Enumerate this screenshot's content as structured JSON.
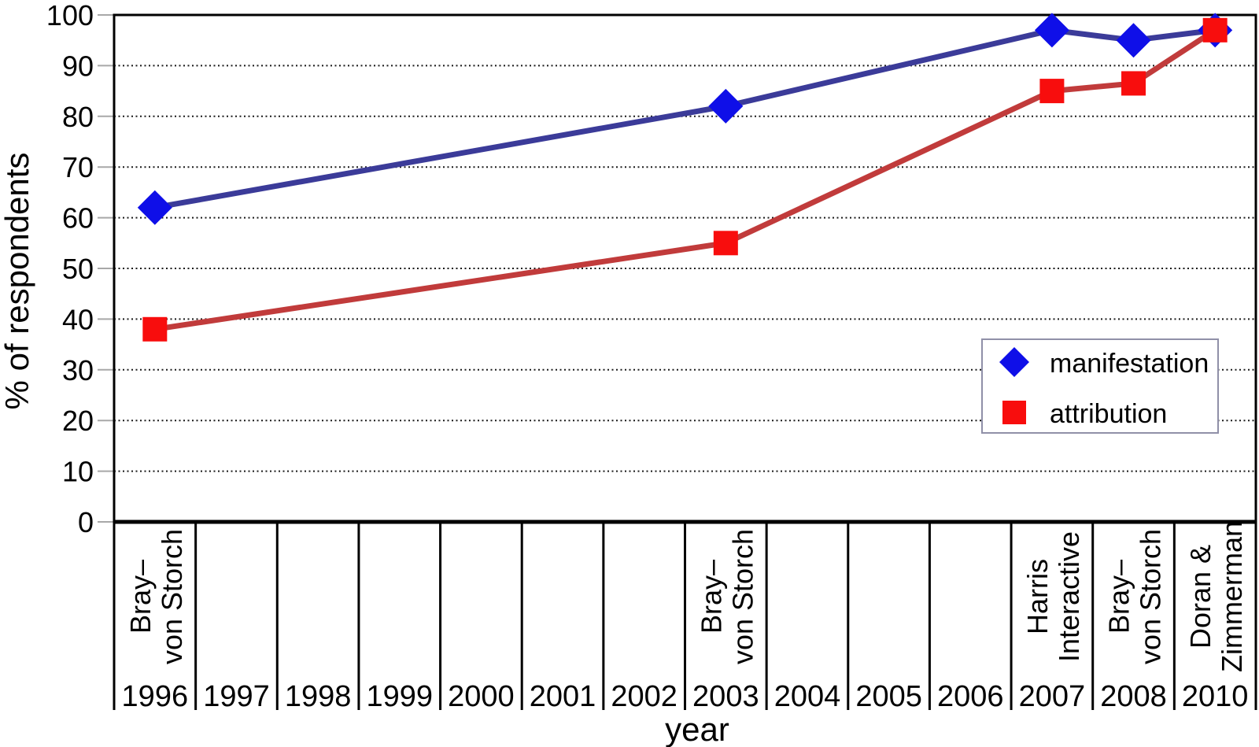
{
  "chart_data": {
    "type": "line",
    "title": "",
    "xlabel": "year",
    "ylabel": "% of respondents",
    "ylim": [
      0,
      100
    ],
    "ytick_step": 10,
    "grid": "horizontal-dotted",
    "legend_position": "middle-right",
    "categories": [
      "1996",
      "1997",
      "1998",
      "1999",
      "2000",
      "2001",
      "2002",
      "2003",
      "2004",
      "2005",
      "2006",
      "2007",
      "2008",
      "2010"
    ],
    "source_annotations": [
      {
        "category": "1996",
        "label_lines": [
          "Bray–",
          "von Storch"
        ]
      },
      {
        "category": "2003",
        "label_lines": [
          "Bray–",
          "von Storch"
        ]
      },
      {
        "category": "2007",
        "label_lines": [
          "Harris",
          "Interactive"
        ]
      },
      {
        "category": "2008",
        "label_lines": [
          "Bray–",
          "von Storch"
        ]
      },
      {
        "category": "2010",
        "label_lines": [
          "Doran &",
          "Zimmerman"
        ]
      }
    ],
    "series": [
      {
        "name": "manifestation",
        "marker": "diamond",
        "marker_color": "#0f0fe8",
        "line_color": "#3b3b99",
        "points": [
          {
            "category": "1996",
            "value": 62
          },
          {
            "category": "2003",
            "value": 82
          },
          {
            "category": "2007",
            "value": 97
          },
          {
            "category": "2008",
            "value": 95
          },
          {
            "category": "2010",
            "value": 97
          }
        ]
      },
      {
        "name": "attribution",
        "marker": "square",
        "marker_color": "#f80d0d",
        "line_color": "#c13b3b",
        "points": [
          {
            "category": "1996",
            "value": 38
          },
          {
            "category": "2003",
            "value": 55
          },
          {
            "category": "2007",
            "value": 85
          },
          {
            "category": "2008",
            "value": 86.5
          },
          {
            "category": "2010",
            "value": 97
          }
        ]
      }
    ],
    "colors": {
      "axis": "#000000",
      "grid": "#1a1a1a",
      "tick": "#a8a8a8",
      "legend_border": "#9090a8",
      "background": "#ffffff"
    }
  }
}
